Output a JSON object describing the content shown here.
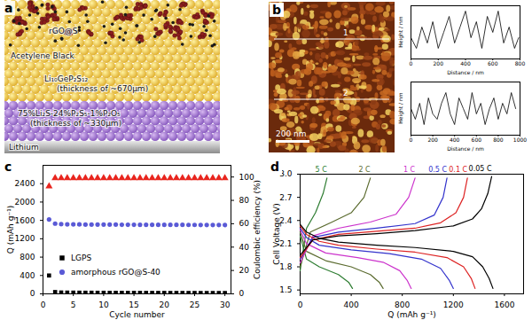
{
  "panel_labels": [
    "a",
    "b",
    "c",
    "d"
  ],
  "schematic": {
    "labels": [
      [
        "rGO@S"
      ],
      [
        "Acetylene Black"
      ],
      [
        "Li₁₀GeP₂S₁₂",
        "(thickness of ~670μm)"
      ],
      [
        "75%Li₂S-24%P₂S₅-1%P₂O₅",
        "(thickness of ~330μm)"
      ],
      [
        "Lithium"
      ]
    ]
  },
  "afm_image": {
    "scale_bar": "200 nm",
    "line_labels": [
      "1",
      "2"
    ]
  },
  "chart_data": [
    {
      "type": "line",
      "x_label": "Distance / nm",
      "y_label": "Height / nm",
      "x": [
        0,
        40,
        80,
        120,
        160,
        200,
        240,
        280,
        320,
        360,
        400,
        440,
        480,
        520,
        560,
        600,
        640,
        680,
        720,
        760,
        790
      ],
      "values": [
        4,
        2,
        6,
        3,
        7,
        2,
        5,
        8,
        3,
        6,
        9,
        4,
        7,
        2,
        8,
        5,
        9,
        3,
        6,
        2,
        4
      ],
      "color": "#000000",
      "xlim": [
        0,
        800
      ],
      "xticks": [
        0,
        200,
        400,
        600,
        800
      ],
      "ylim": [
        0,
        10
      ],
      "tick_labels": "x"
    },
    {
      "type": "line",
      "x_label": "Distance / nm",
      "y_label": "Height / nm",
      "x": [
        0,
        40,
        80,
        120,
        160,
        200,
        240,
        280,
        320,
        360,
        400,
        440,
        480,
        520,
        560,
        600,
        640,
        680,
        720,
        760,
        800,
        840,
        880,
        920,
        960
      ],
      "values": [
        5,
        3,
        6,
        2,
        7,
        4,
        3,
        6,
        8,
        4,
        2,
        7,
        5,
        3,
        8,
        4,
        6,
        2,
        5,
        7,
        3,
        6,
        4,
        8,
        5
      ],
      "color": "#000000",
      "xlim": [
        0,
        1000
      ],
      "xticks": [
        0,
        200,
        400,
        600,
        800,
        1000
      ],
      "ylim": [
        0,
        10
      ],
      "tick_labels": "x"
    },
    {
      "type": "scatter",
      "x_label": "Cycle number",
      "y_label": "Q (mAh g⁻¹)",
      "y2_label": "Coulombic efficiency (%)",
      "x": [
        1,
        2,
        3,
        4,
        5,
        6,
        7,
        8,
        9,
        10,
        11,
        12,
        13,
        14,
        15,
        16,
        17,
        18,
        19,
        20,
        21,
        22,
        23,
        24,
        25,
        26,
        27,
        28,
        29,
        30
      ],
      "xlim": [
        0,
        31
      ],
      "xticks": [
        0,
        5,
        10,
        15,
        20,
        25,
        30
      ],
      "ylim": [
        0,
        2800
      ],
      "yticks": [
        0,
        400,
        800,
        1200,
        1600,
        2000,
        2400
      ],
      "y2lim": [
        0,
        110
      ],
      "y2ticks": [
        0,
        20,
        40,
        60,
        80,
        100
      ],
      "legend": "left",
      "series": [
        {
          "name": "LGPS",
          "color": "#000000",
          "marker": "square",
          "values": [
            400,
            40,
            30,
            28,
            27,
            26,
            25,
            25,
            24,
            24,
            23,
            23,
            23,
            22,
            22,
            22,
            21,
            21,
            21,
            21,
            20,
            20,
            20,
            20,
            20,
            19,
            19,
            19,
            19,
            19
          ]
        },
        {
          "name": "amorphous rGO@S-40",
          "color": "#5a5ad6",
          "marker": "circle",
          "values": [
            1620,
            1530,
            1520,
            1515,
            1515,
            1512,
            1510,
            1510,
            1508,
            1508,
            1507,
            1507,
            1505,
            1505,
            1505,
            1504,
            1504,
            1503,
            1503,
            1503,
            1502,
            1502,
            1502,
            1501,
            1501,
            1500,
            1500,
            1500,
            1499,
            1499
          ]
        },
        {
          "color": "#e8251e",
          "marker": "triangle",
          "axis": "y2",
          "values": [
            92,
            99,
            99,
            99,
            99,
            99,
            99,
            99,
            99,
            99,
            99,
            99,
            99,
            99,
            99,
            99,
            99,
            99,
            99,
            99,
            99,
            99,
            99,
            99,
            99,
            99,
            99,
            99,
            99,
            99
          ]
        }
      ]
    },
    {
      "type": "line",
      "x_label": "Q (mAh g⁻¹)",
      "y_label": "Cell Voltage (V)",
      "xlim": [
        0,
        1750
      ],
      "xticks": [
        0,
        400,
        800,
        1200,
        1600
      ],
      "ylim": [
        1.45,
        3.0
      ],
      "yticks": [
        1.5,
        1.8,
        2.1,
        2.4,
        2.7,
        {
          "value": 3,
          "label": "3.0"
        }
      ],
      "data_labels": true,
      "series": [
        {
          "name": "5 C",
          "color": "#2e7d32",
          "curves": [
            {
              "x": [
                0,
                50,
                120,
                180,
                210
              ],
              "values": [
                1.75,
                2.3,
                2.5,
                2.75,
                2.95
              ]
            },
            {
              "x": [
                0,
                50,
                150,
                300,
                380,
                410
              ],
              "values": [
                2.2,
                1.9,
                1.8,
                1.7,
                1.6,
                1.52
              ]
            }
          ]
        },
        {
          "name": "2 C",
          "color": "#5b6b2f",
          "curves": [
            {
              "x": [
                0,
                80,
                250,
                400,
                500,
                550
              ],
              "values": [
                1.8,
                2.25,
                2.38,
                2.5,
                2.7,
                2.95
              ]
            },
            {
              "x": [
                0,
                50,
                200,
                400,
                550,
                620,
                650
              ],
              "values": [
                2.25,
                2.0,
                1.88,
                1.8,
                1.7,
                1.6,
                1.52
              ]
            }
          ]
        },
        {
          "name": "1 C",
          "color": "#cc33cc",
          "curves": [
            {
              "x": [
                0,
                100,
                300,
                550,
                750,
                850,
                900
              ],
              "values": [
                1.85,
                2.2,
                2.3,
                2.38,
                2.48,
                2.7,
                2.95
              ]
            },
            {
              "x": [
                0,
                50,
                200,
                450,
                650,
                780,
                840,
                870
              ],
              "values": [
                2.28,
                2.1,
                1.98,
                1.92,
                1.86,
                1.75,
                1.62,
                1.52
              ]
            }
          ]
        },
        {
          "name": "0.5 C",
          "color": "#3333cc",
          "curves": [
            {
              "x": [
                0,
                100,
                300,
                600,
                900,
                1050,
                1120,
                1150
              ],
              "values": [
                1.9,
                2.18,
                2.25,
                2.3,
                2.36,
                2.47,
                2.7,
                2.95
              ]
            },
            {
              "x": [
                0,
                50,
                150,
                400,
                700,
                950,
                1100,
                1170,
                1200
              ],
              "values": [
                2.3,
                2.18,
                2.08,
                2.02,
                1.97,
                1.9,
                1.78,
                1.62,
                1.52
              ]
            }
          ]
        },
        {
          "name": "0.1 C",
          "color": "#dd2222",
          "curves": [
            {
              "x": [
                0,
                100,
                300,
                600,
                900,
                1100,
                1220,
                1280,
                1310
              ],
              "values": [
                1.92,
                2.15,
                2.22,
                2.26,
                2.3,
                2.37,
                2.5,
                2.7,
                2.95
              ]
            },
            {
              "x": [
                0,
                50,
                150,
                300,
                600,
                900,
                1150,
                1280,
                1340,
                1370
              ],
              "values": [
                2.33,
                2.22,
                2.13,
                2.08,
                2.03,
                1.99,
                1.92,
                1.8,
                1.65,
                1.52
              ]
            }
          ]
        },
        {
          "name": "0.05 C",
          "color": "#000000",
          "curves": [
            {
              "x": [
                0,
                100,
                300,
                600,
                900,
                1200,
                1350,
                1420,
                1470,
                1500
              ],
              "values": [
                1.95,
                2.15,
                2.2,
                2.23,
                2.27,
                2.33,
                2.42,
                2.55,
                2.75,
                2.97
              ]
            },
            {
              "x": [
                0,
                50,
                150,
                300,
                600,
                900,
                1200,
                1350,
                1430,
                1480,
                1510
              ],
              "values": [
                2.35,
                2.25,
                2.17,
                2.12,
                2.08,
                2.05,
                2.0,
                1.93,
                1.8,
                1.65,
                1.52
              ]
            }
          ]
        }
      ]
    }
  ]
}
